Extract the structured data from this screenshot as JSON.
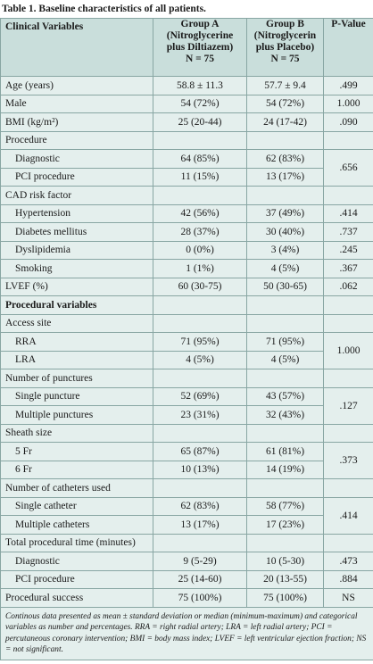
{
  "title": "Table 1. Baseline characteristics of all patients.",
  "table": {
    "header": [
      [
        "Clinical Variables"
      ],
      [
        "Group A",
        "(Nitroglycerine",
        "plus Diltiazem)",
        "N = 75"
      ],
      [
        "Group B",
        "(Nitroglycerin",
        "plus Placebo)",
        "N = 75"
      ],
      [
        "P-Value"
      ]
    ],
    "rows": [
      {
        "label": "Age (years)",
        "a": "58.8 ± 11.3",
        "b": "57.7 ± 9.4",
        "p": ".499"
      },
      {
        "label": "Male",
        "a": "54 (72%)",
        "b": "54 (72%)",
        "p": "1.000"
      },
      {
        "label": "BMI (kg/m²)",
        "a": "25 (20-44)",
        "b": "24 (17-42)",
        "p": ".090"
      },
      {
        "label": "Procedure",
        "p": ".656",
        "items": [
          {
            "label": "Diagnostic",
            "a": "64 (85%)",
            "b": "62 (83%)"
          },
          {
            "label": "PCI procedure",
            "a": "11 (15%)",
            "b": "13 (17%)"
          }
        ]
      },
      {
        "label": "CAD risk factor",
        "items": [
          {
            "label": "Hypertension",
            "a": "42 (56%)",
            "b": "37 (49%)",
            "p": ".414"
          },
          {
            "label": "Diabetes mellitus",
            "a": "28 (37%)",
            "b": "30 (40%)",
            "p": ".737"
          },
          {
            "label": "Dyslipidemia",
            "a": "0 (0%)",
            "b": "3 (4%)",
            "p": ".245"
          },
          {
            "label": "Smoking",
            "a": "1 (1%)",
            "b": "4 (5%)",
            "p": ".367"
          }
        ]
      },
      {
        "label": "LVEF (%)",
        "a": "60 (30-75)",
        "b": "50 (30-65)",
        "p": ".062"
      },
      {
        "label": "Procedural variables"
      },
      {
        "label": "Access site",
        "p": "1.000",
        "items": [
          {
            "label": "RRA",
            "a": "71 (95%)",
            "b": "71 (95%)"
          },
          {
            "label": "LRA",
            "a": "4 (5%)",
            "b": "4 (5%)"
          }
        ]
      },
      {
        "label": "Number of punctures",
        "p": ".127",
        "items": [
          {
            "label": "Single puncture",
            "a": "52 (69%)",
            "b": "43 (57%)"
          },
          {
            "label": "Multiple punctures",
            "a": "23 (31%)",
            "b": "32 (43%)"
          }
        ]
      },
      {
        "label": "Sheath size",
        "p": ".373",
        "items": [
          {
            "label": "5 Fr",
            "a": "65 (87%)",
            "b": "61 (81%)"
          },
          {
            "label": "6 Fr",
            "a": "10 (13%)",
            "b": "14 (19%)"
          }
        ]
      },
      {
        "label": "Number of catheters used",
        "p": ".414",
        "items": [
          {
            "label": "Single catheter",
            "a": "62 (83%)",
            "b": "58 (77%)"
          },
          {
            "label": "Multiple catheters",
            "a": "13 (17%)",
            "b": "17 (23%)"
          }
        ]
      },
      {
        "label": "Total procedural time (minutes)",
        "items": [
          {
            "label": "Diagnostic",
            "a": "9 (5-29)",
            "b": "10 (5-30)",
            "p": ".473"
          },
          {
            "label": "PCI procedure",
            "a": "25 (14-60)",
            "b": "20 (13-55)",
            "p": ".884"
          }
        ]
      },
      {
        "label": "Procedural success",
        "a": "75 (100%)",
        "b": "75 (100%)",
        "p": "NS"
      }
    ],
    "footnote": "Continous data presented as mean ± standard deviation or median (minimum-maximum) and categorical variables as number and percentages. RRA = right radial artery; LRA = left radial artery; PCI = percutaneous coronary intervention; BMI = body mass index; LVEF = left ventricular ejection fraction; NS = not significant."
  }
}
